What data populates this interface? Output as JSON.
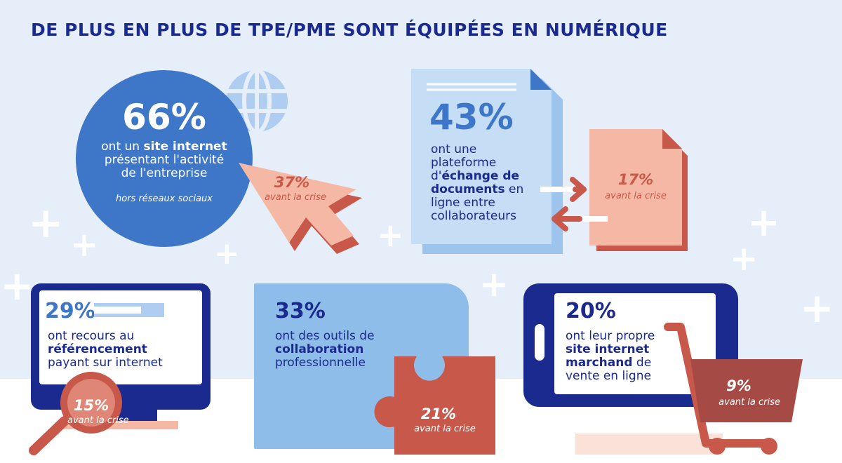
{
  "title": "DE PLUS EN PLUS DE TPE/PME SONT ÉQUIPÉES EN NUMÉRIQUE",
  "colors": {
    "navy": "#1b2a8e",
    "blue": "#3f77c8",
    "lightblue": "#9cc4ec",
    "salmon": "#f5b8a4",
    "red": "#c8584a"
  },
  "website": {
    "pct": "66%",
    "line1_pre": "ont un ",
    "line1_bold": "site internet",
    "line2": "présentant l'activité",
    "line3": "de l'entreprise",
    "note": "hors réseaux sociaux",
    "before_pct": "37%",
    "before_label": "avant la crise"
  },
  "documents": {
    "pct": "43%",
    "l1": "ont une",
    "l2": "plateforme",
    "l3_pre": "d'",
    "l3_bold": "échange de",
    "l4_bold": "documents",
    "l4_post": " en",
    "l5": "ligne entre",
    "l6": "collaborateurs",
    "before_pct": "17%",
    "before_label": "avant la crise"
  },
  "seo": {
    "pct": "29%",
    "progress": 0.29,
    "l1": "ont recours au",
    "l2_bold": "référencement",
    "l3": "payant sur internet",
    "before_pct": "15%",
    "before_label": "avant la crise"
  },
  "collab": {
    "pct": "33%",
    "l1": "ont des outils de",
    "l2_bold": "collaboration",
    "l3": "professionnelle",
    "before_pct": "21%",
    "before_label": "avant la crise"
  },
  "ecommerce": {
    "pct": "20%",
    "l1": "ont leur propre",
    "l2_bold": "site internet",
    "l3_bold": "marchand",
    "l3_post": " de",
    "l4": "vente en ligne",
    "before_pct": "9%",
    "before_label": "avant la crise"
  }
}
